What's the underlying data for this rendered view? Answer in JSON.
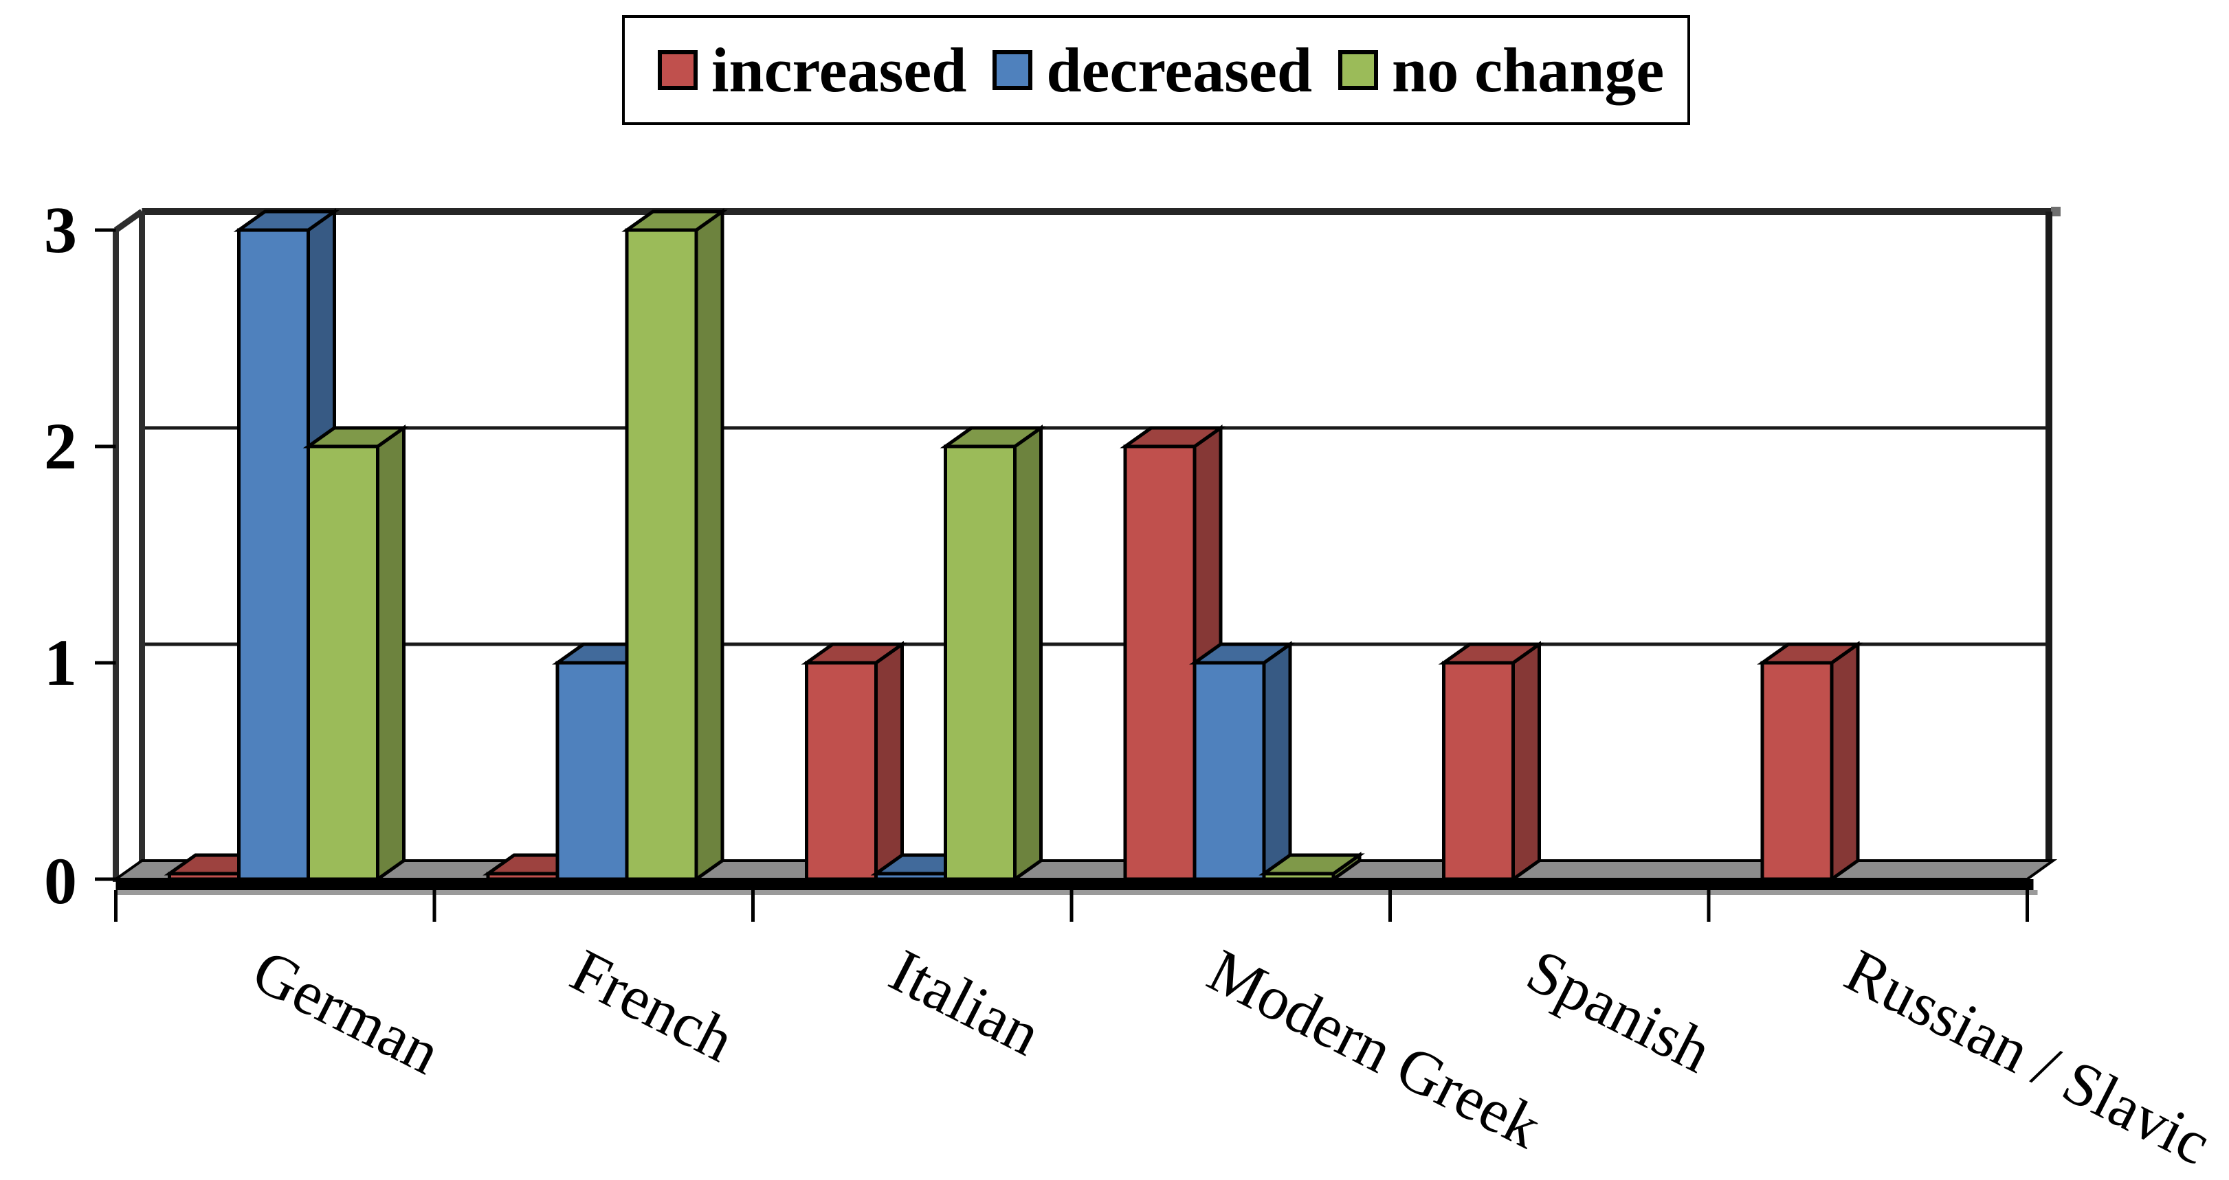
{
  "chart_data": {
    "type": "bar",
    "style": "3d-clustered-column",
    "title": "",
    "xlabel": "",
    "ylabel": "",
    "categories": [
      "German",
      "French",
      "Italian",
      "Modern Greek",
      "Spanish",
      "Russian / Slavic"
    ],
    "series": [
      {
        "name": "increased",
        "color": "#C0504D",
        "values": [
          0,
          0,
          1,
          2,
          1,
          1
        ]
      },
      {
        "name": "decreased",
        "color": "#4F81BD",
        "values": [
          3,
          1,
          0,
          1,
          null,
          null
        ]
      },
      {
        "name": "no change",
        "color": "#9BBB59",
        "values": [
          2,
          3,
          2,
          0,
          null,
          null
        ]
      }
    ],
    "ylim": [
      0,
      3
    ],
    "yticks": [
      0,
      1,
      2,
      3
    ],
    "grid": "horizontal",
    "legend_position": "top"
  },
  "axes": {
    "yticks_top_to_bottom": [
      "3",
      "2",
      "1",
      "0"
    ]
  },
  "colors": {
    "floor": "#8C8C8C",
    "frame": "#262626",
    "gridline": "#1a1a1a",
    "background": "#ffffff"
  }
}
